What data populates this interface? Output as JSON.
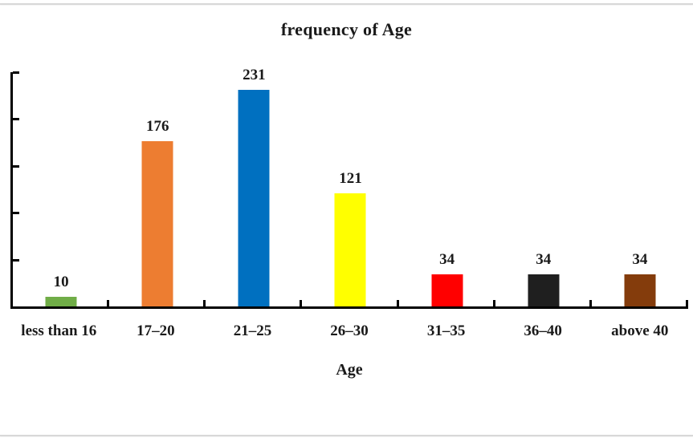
{
  "chart_data": {
    "type": "bar",
    "title": "frequency of Age",
    "xlabel": "Age",
    "ylabel": "",
    "categories": [
      "less than 16",
      "17–20",
      "21–25",
      "26–30",
      "31–35",
      "36–40",
      "above 40"
    ],
    "values": [
      10,
      176,
      231,
      121,
      34,
      34,
      34
    ],
    "bar_colors": [
      "#70AD47",
      "#ED7D31",
      "#0070C0",
      "#FFFF00",
      "#FF0000",
      "#1F1F1F",
      "#843C0C"
    ],
    "ylim": [
      0,
      250
    ],
    "ytick_interval": 50,
    "ytick_labels_shown": false,
    "value_labels_shown": true,
    "grid": false,
    "legend": "none",
    "text_color": "#1a1a1a",
    "axis_color": "#000000"
  }
}
